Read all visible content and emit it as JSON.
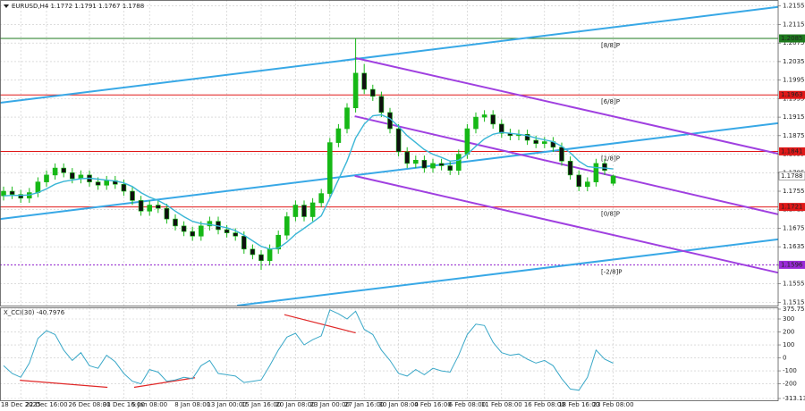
{
  "chart_data": [
    {
      "type": "candlestick",
      "title": "EURUSD,H4  1.1772 1.1791 1.1767 1.1788",
      "categories": [
        null,
        null,
        "18 Dec 2025",
        null,
        null,
        "22 Dec 16:00",
        null,
        null,
        null,
        null,
        "26 Dec 08:00",
        null,
        null,
        null,
        "31 Dec 16:00",
        null,
        null,
        "5 Jan 08:00",
        null,
        null,
        null,
        null,
        "8 Jan 08:00",
        null,
        null,
        null,
        "13 Jan 00:00",
        null,
        null,
        null,
        "15 Jan 16:00",
        null,
        null,
        null,
        "20 Jan 08:00",
        null,
        null,
        null,
        "23 Jan 00:00",
        null,
        null,
        null,
        "27 Jan 16:00",
        null,
        null,
        null,
        "30 Jan 08:00",
        null,
        null,
        null,
        "4 Feb 16:00",
        null,
        null,
        null,
        "6 Feb 08:00",
        null,
        null,
        null,
        "11 Feb 08:00",
        null,
        null,
        null,
        null,
        "16 Feb 08:00",
        null,
        null,
        null,
        "18 Feb 16:00",
        null,
        null,
        null,
        "23 Feb 08:00"
      ],
      "open": [
        1.1745,
        1.1755,
        1.1748,
        1.174,
        1.1752,
        1.1775,
        1.179,
        1.1805,
        1.1795,
        1.1782,
        1.179,
        1.1775,
        1.1768,
        1.1778,
        1.177,
        1.1755,
        1.1735,
        1.1712,
        1.1725,
        1.1718,
        1.1695,
        1.168,
        1.1668,
        1.1658,
        1.168,
        1.169,
        1.1672,
        1.1665,
        1.1658,
        1.163,
        1.1618,
        1.1605,
        1.163,
        1.166,
        1.17,
        1.1725,
        1.17,
        1.173,
        1.175,
        1.186,
        1.189,
        1.1935,
        1.201,
        1.1975,
        1.196,
        1.1925,
        1.189,
        1.184,
        1.1815,
        1.1822,
        1.1805,
        1.1815,
        1.181,
        1.18,
        1.1835,
        1.189,
        1.1915,
        1.192,
        1.19,
        1.188,
        1.1875,
        1.1878,
        1.1865,
        1.1858,
        1.1862,
        1.185,
        1.182,
        1.179,
        1.1765,
        1.1775,
        1.1815,
        1.1772
      ],
      "high": [
        1.1765,
        1.1765,
        1.1758,
        1.1762,
        1.1785,
        1.18,
        1.1815,
        1.1815,
        1.1805,
        1.18,
        1.18,
        1.1785,
        1.1788,
        1.1788,
        1.178,
        1.1765,
        1.1745,
        1.1735,
        1.1735,
        1.1728,
        1.1705,
        1.169,
        1.1678,
        1.169,
        1.17,
        1.17,
        1.1682,
        1.1675,
        1.1668,
        1.164,
        1.1628,
        1.164,
        1.167,
        1.171,
        1.1735,
        1.1735,
        1.174,
        1.176,
        1.187,
        1.19,
        1.1945,
        1.2085,
        1.203,
        1.1985,
        1.197,
        1.1935,
        1.19,
        1.185,
        1.1832,
        1.1832,
        1.1825,
        1.1825,
        1.182,
        1.1845,
        1.19,
        1.1925,
        1.193,
        1.193,
        1.191,
        1.189,
        1.1888,
        1.1888,
        1.1875,
        1.1872,
        1.1872,
        1.186,
        1.183,
        1.18,
        1.1785,
        1.1825,
        1.1825,
        1.1791
      ],
      "low": [
        1.1735,
        1.1738,
        1.173,
        1.173,
        1.1742,
        1.1765,
        1.178,
        1.1785,
        1.1772,
        1.1772,
        1.1765,
        1.1758,
        1.1758,
        1.176,
        1.1745,
        1.1725,
        1.1702,
        1.1702,
        1.1708,
        1.1685,
        1.167,
        1.1658,
        1.1648,
        1.1648,
        1.167,
        1.1662,
        1.1655,
        1.1648,
        1.162,
        1.1608,
        1.1585,
        1.1595,
        1.162,
        1.165,
        1.169,
        1.169,
        1.169,
        1.172,
        1.174,
        1.185,
        1.188,
        1.1925,
        1.1965,
        1.195,
        1.1915,
        1.188,
        1.183,
        1.1805,
        1.1805,
        1.1795,
        1.1795,
        1.18,
        1.179,
        1.179,
        1.1825,
        1.188,
        1.1905,
        1.189,
        1.187,
        1.1865,
        1.1865,
        1.1855,
        1.1848,
        1.1848,
        1.184,
        1.181,
        1.178,
        1.1755,
        1.1755,
        1.1765,
        1.179,
        1.1767
      ],
      "close": [
        1.1755,
        1.1748,
        1.174,
        1.1752,
        1.1775,
        1.179,
        1.1805,
        1.1795,
        1.1782,
        1.179,
        1.1775,
        1.1768,
        1.1778,
        1.177,
        1.1755,
        1.1735,
        1.1712,
        1.1725,
        1.1718,
        1.1695,
        1.168,
        1.1668,
        1.1658,
        1.168,
        1.169,
        1.1672,
        1.1665,
        1.1658,
        1.163,
        1.1618,
        1.1605,
        1.163,
        1.166,
        1.17,
        1.1725,
        1.17,
        1.173,
        1.175,
        1.186,
        1.189,
        1.1935,
        1.201,
        1.1975,
        1.196,
        1.1925,
        1.189,
        1.184,
        1.1815,
        1.1822,
        1.1805,
        1.1815,
        1.181,
        1.18,
        1.1835,
        1.189,
        1.1915,
        1.192,
        1.19,
        1.188,
        1.1875,
        1.1878,
        1.1865,
        1.1858,
        1.1862,
        1.185,
        1.182,
        1.179,
        1.1765,
        1.1775,
        1.1815,
        1.18,
        1.1788
      ],
      "up_color": "#16b816",
      "down_color": "#101010",
      "wick_color": "#16b816",
      "series": [
        {
          "color": "#3ab6d6",
          "values": [
            1.1745,
            1.1746,
            1.1746,
            1.1747,
            1.1752,
            1.176,
            1.177,
            1.1776,
            1.1779,
            1.1782,
            1.1783,
            1.1781,
            1.1779,
            1.1777,
            1.1773,
            1.1765,
            1.1752,
            1.1742,
            1.1735,
            1.1725,
            1.1712,
            1.17,
            1.169,
            1.1685,
            1.1683,
            1.168,
            1.1676,
            1.167,
            1.166,
            1.1648,
            1.1636,
            1.163,
            1.1632,
            1.1645,
            1.1662,
            1.1675,
            1.1688,
            1.1702,
            1.174,
            1.178,
            1.182,
            1.187,
            1.19,
            1.1918,
            1.192,
            1.1912,
            1.1895,
            1.1875,
            1.186,
            1.1845,
            1.1835,
            1.1828,
            1.182,
            1.1822,
            1.1835,
            1.1852,
            1.1868,
            1.1878,
            1.1882,
            1.188,
            1.1878,
            1.1875,
            1.187,
            1.1866,
            1.1862,
            1.1852,
            1.1838,
            1.182,
            1.1808,
            1.1806,
            1.1805,
            1.1803
          ]
        }
      ],
      "ylim": [
        1.1508,
        1.2168
      ],
      "yticks": [
        1.2155,
        1.2115,
        1.2075,
        1.2035,
        1.1995,
        1.1955,
        1.1915,
        1.1875,
        1.1835,
        1.1795,
        1.1755,
        1.1715,
        1.1675,
        1.1635,
        1.1595,
        1.1555,
        1.1515
      ],
      "grid": true,
      "levels": [
        {
          "price": 1.2085,
          "tag": "[8/8]P",
          "color": "#1e7a1e",
          "style": "solid"
        },
        {
          "price": 1.1963,
          "tag": "[6/8]P",
          "color": "#e01818",
          "style": "solid"
        },
        {
          "price": 1.1841,
          "tag": "[1/8]P",
          "color": "#e01818",
          "style": "solid"
        },
        {
          "price": 1.1721,
          "tag": "[0/8]P",
          "color": "#e01818",
          "style": "solid"
        },
        {
          "price": 1.1596,
          "tag": "[-2/8]P",
          "color": "#9a2ad8",
          "style": "dotted"
        }
      ],
      "trendlines": [
        {
          "color": "#38a8e6",
          "x": [
            -0.4,
            90.2
          ],
          "y": [
            1.1946,
            1.2153
          ]
        },
        {
          "color": "#38a8e6",
          "x": [
            -0.4,
            90.2
          ],
          "y": [
            1.1695,
            1.1902
          ]
        },
        {
          "color": "#38a8e6",
          "x": [
            27.2,
            90.2
          ],
          "y": [
            1.1508,
            1.1651
          ]
        },
        {
          "color": "#a040e0",
          "x": [
            40.9,
            90.2
          ],
          "y": [
            1.2043,
            1.1836
          ]
        },
        {
          "color": "#a040e0",
          "x": [
            40.9,
            90.2
          ],
          "y": [
            1.1917,
            1.1705
          ]
        },
        {
          "color": "#a040e0",
          "x": [
            40.9,
            90.2
          ],
          "y": [
            1.1788,
            1.1579
          ]
        }
      ]
    },
    {
      "type": "line",
      "title": "X_CCI(30) -40.7976",
      "series": [
        {
          "color": "#3aa8c8",
          "values": [
            -60,
            -120,
            -150,
            -40,
            150,
            210,
            180,
            60,
            -20,
            40,
            -60,
            -80,
            20,
            -30,
            -120,
            -180,
            -200,
            -90,
            -110,
            -180,
            -170,
            -150,
            -160,
            -60,
            -20,
            -120,
            -130,
            -140,
            -190,
            -180,
            -170,
            -60,
            60,
            160,
            190,
            100,
            140,
            170,
            370,
            340,
            300,
            360,
            220,
            180,
            60,
            -20,
            -120,
            -140,
            -90,
            -130,
            -80,
            -100,
            -110,
            20,
            180,
            260,
            250,
            120,
            40,
            20,
            30,
            -10,
            -40,
            -20,
            -60,
            -160,
            -240,
            -250,
            -150,
            60,
            -10,
            -40.7976
          ]
        }
      ],
      "ylim": [
        -313.1385,
        375.7568
      ],
      "yticks": [
        375.7568,
        300,
        200,
        100,
        0,
        -100,
        -200,
        -313.1385
      ],
      "grid": true,
      "trendlines": [
        {
          "color": "#e02828",
          "x": [
            1.9,
            12.1
          ],
          "y": [
            -173,
            -227
          ]
        },
        {
          "color": "#e02828",
          "x": [
            15.2,
            22.3
          ],
          "y": [
            -227,
            -153
          ]
        },
        {
          "color": "#e02828",
          "x": [
            32.7,
            41.0
          ],
          "y": [
            333,
            193
          ]
        }
      ]
    }
  ]
}
